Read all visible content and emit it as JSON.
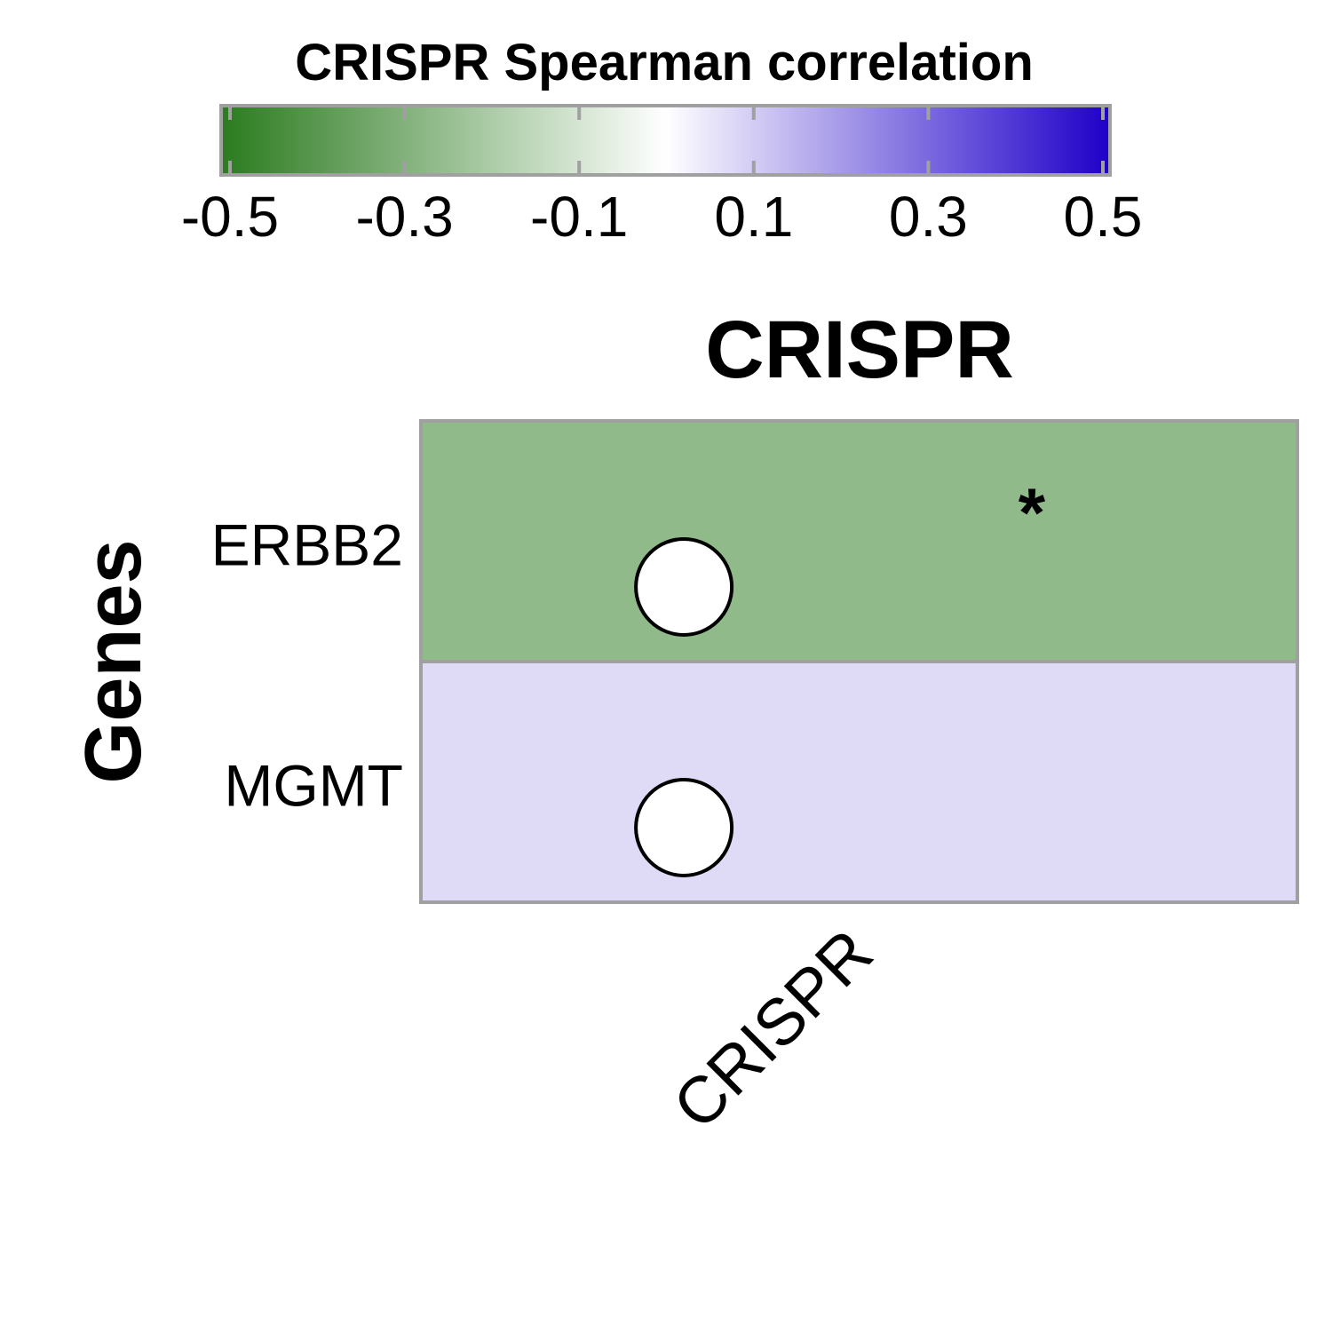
{
  "chart_data": {
    "type": "heatmap",
    "title": "CRISPR",
    "ylabel": "Genes",
    "columns": [
      "CRISPR"
    ],
    "rows": [
      "ERBB2",
      "MGMT"
    ],
    "values": [
      [
        -0.26
      ],
      [
        0.07
      ]
    ],
    "significant": [
      [
        true
      ],
      [
        false
      ]
    ],
    "significance_marker": "*",
    "legend": {
      "title": "CRISPR Spearman correlation",
      "range": [
        -0.5,
        0.5
      ],
      "ticks": [
        "-0.5",
        "-0.3",
        "-0.1",
        "0.1",
        "0.3",
        "0.5"
      ],
      "colors": {
        "low": "#2b7b1f",
        "mid": "#ffffff",
        "high": "#1e00c8"
      }
    }
  }
}
